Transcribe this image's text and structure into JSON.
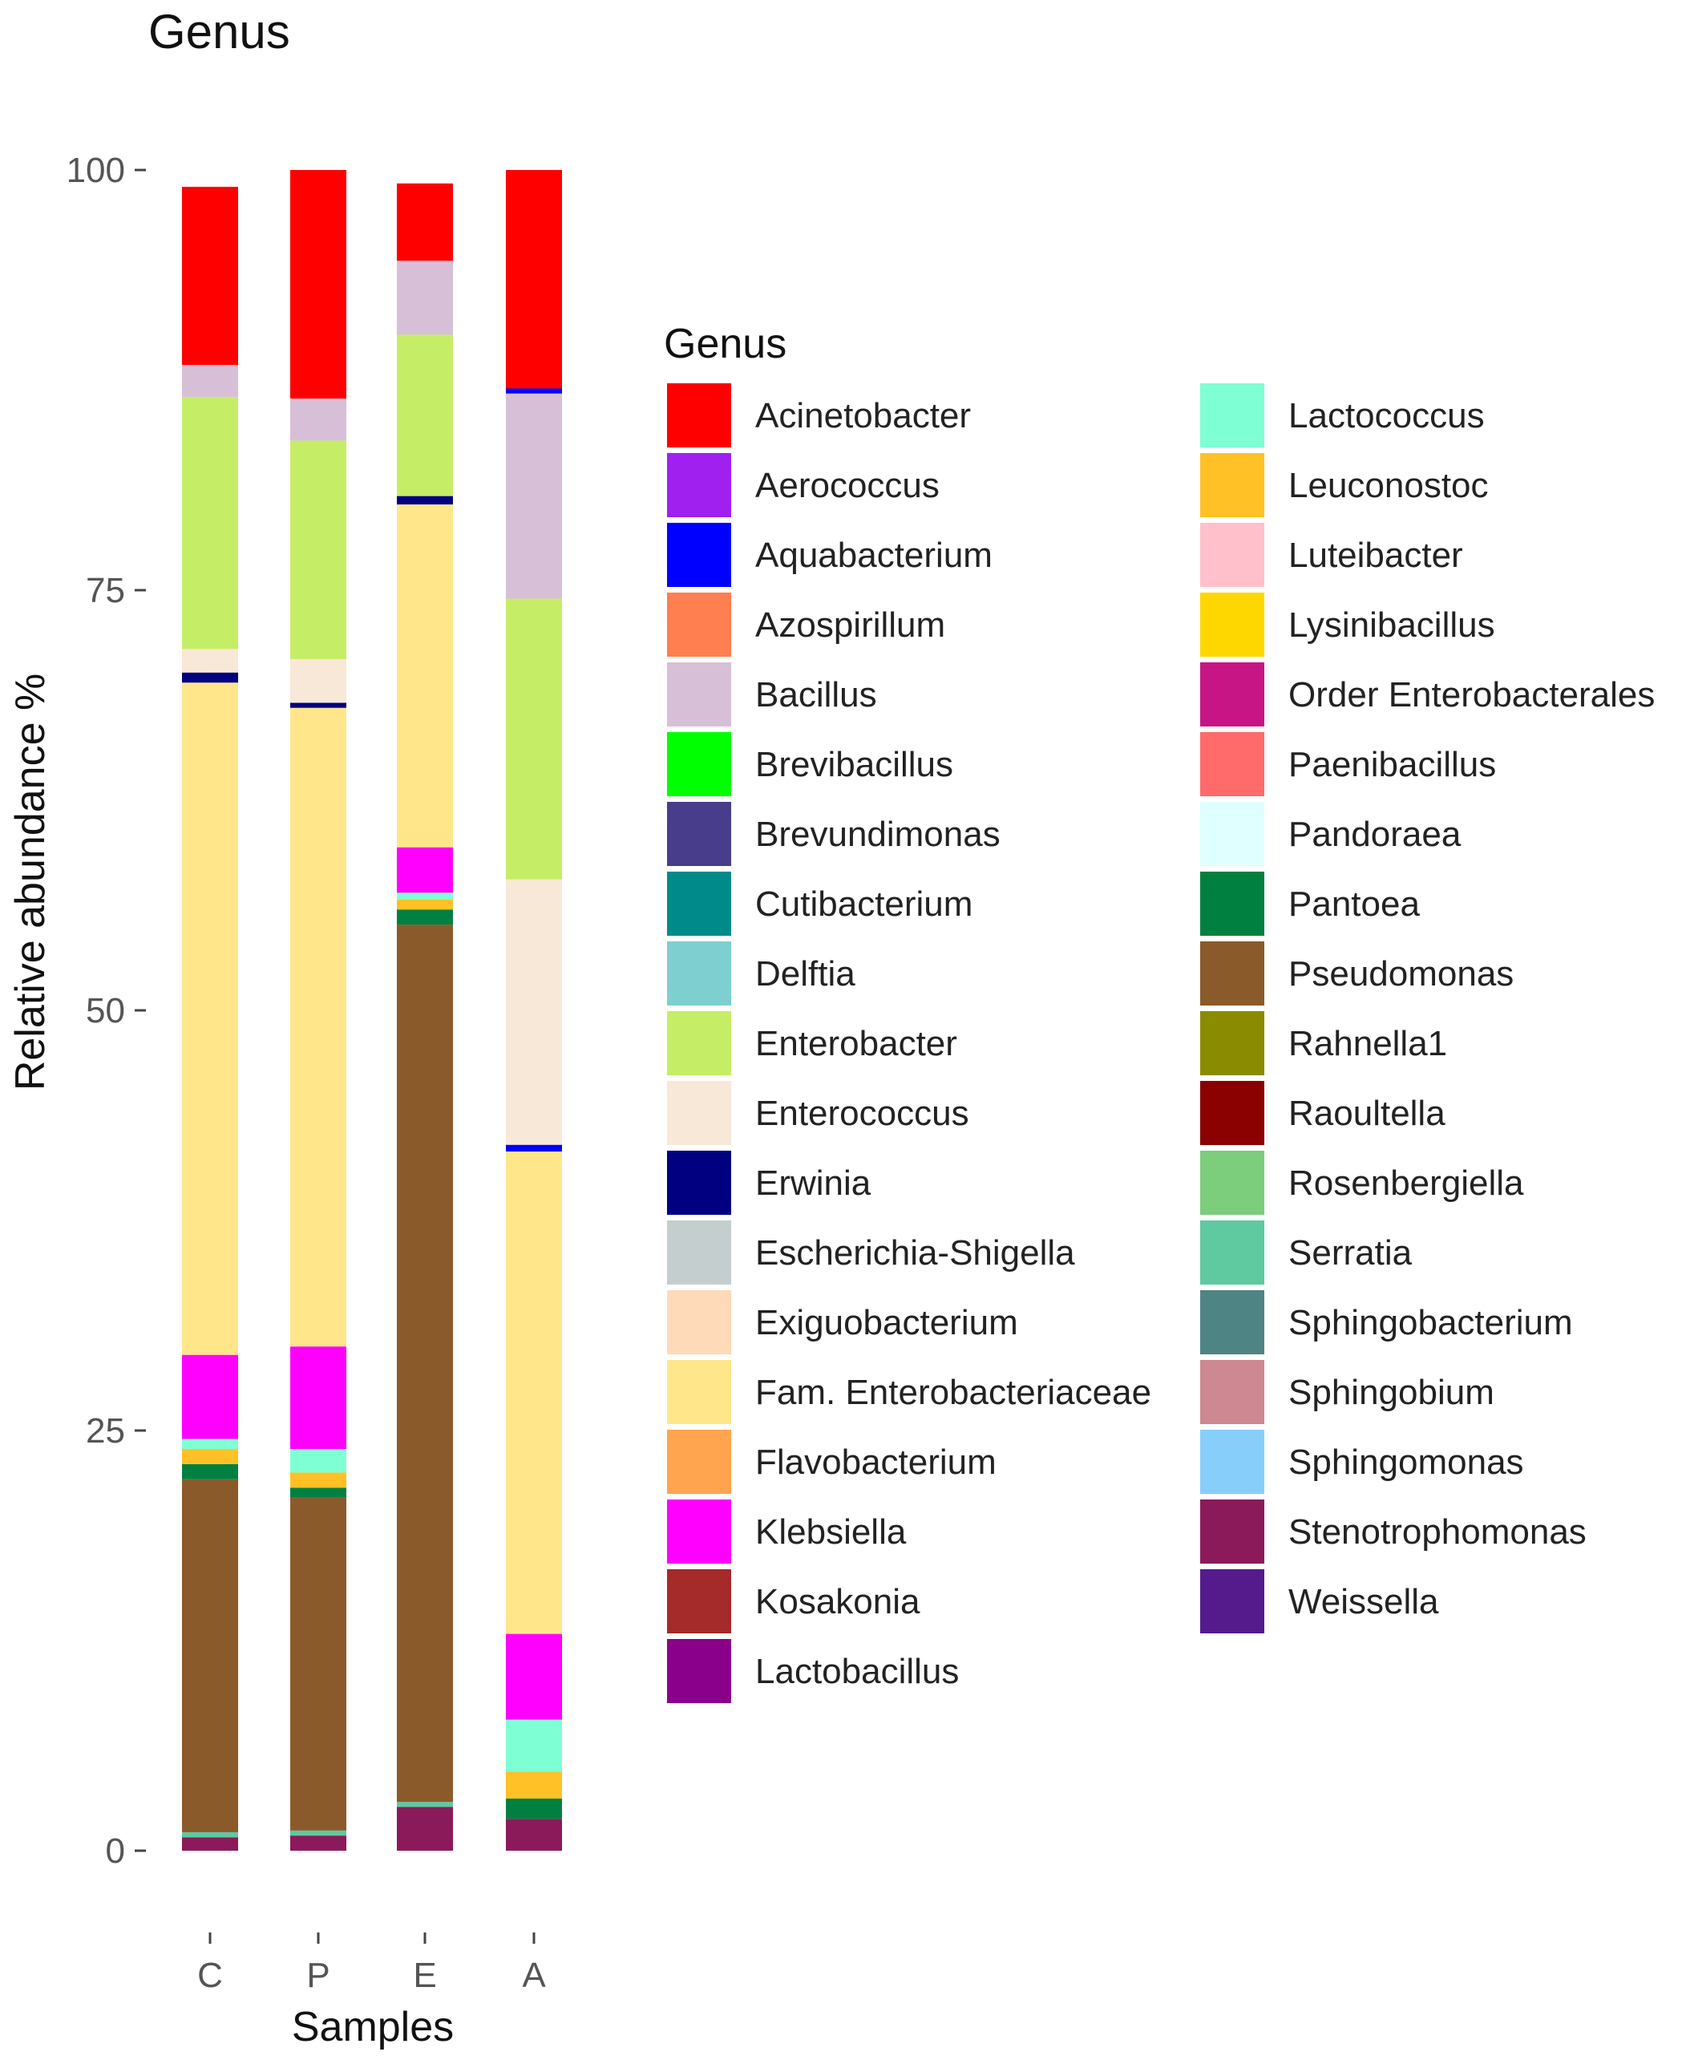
{
  "chart_data": {
    "type": "bar",
    "stacked": true,
    "title": "Genus",
    "xlabel": "Samples",
    "ylabel": "Relative abundance %",
    "ylim": [
      0,
      100
    ],
    "yticks": [
      0,
      25,
      50,
      75,
      100
    ],
    "categories": [
      "C",
      "P",
      "E",
      "A"
    ],
    "legend": {
      "title": "Genus",
      "position": "right",
      "columns": 2
    },
    "genera": [
      {
        "name": "Acinetobacter",
        "color": "#ff0000"
      },
      {
        "name": "Aerococcus",
        "color": "#a020f0"
      },
      {
        "name": "Aquabacterium",
        "color": "#0000ff"
      },
      {
        "name": "Azospirillum",
        "color": "#ff7f50"
      },
      {
        "name": "Bacillus",
        "color": "#d8bfd8"
      },
      {
        "name": "Brevibacillus",
        "color": "#00ff00"
      },
      {
        "name": "Brevundimonas",
        "color": "#483d8b"
      },
      {
        "name": "Cutibacterium",
        "color": "#008b8b"
      },
      {
        "name": "Delftia",
        "color": "#7ecfcf"
      },
      {
        "name": "Enterobacter",
        "color": "#c5ee66"
      },
      {
        "name": "Enterococcus",
        "color": "#f8e8d8"
      },
      {
        "name": "Erwinia",
        "color": "#000080"
      },
      {
        "name": "Escherichia-Shigella",
        "color": "#c5cece"
      },
      {
        "name": "Exiguobacterium",
        "color": "#ffdab9"
      },
      {
        "name": "Fam. Enterobacteriaceae",
        "color": "#ffe68a"
      },
      {
        "name": "Flavobacterium",
        "color": "#ffa54f"
      },
      {
        "name": "Klebsiella",
        "color": "#ff00ff"
      },
      {
        "name": "Kosakonia",
        "color": "#a52a2a"
      },
      {
        "name": "Lactobacillus",
        "color": "#8b008b"
      },
      {
        "name": "Lactococcus",
        "color": "#7fffd4"
      },
      {
        "name": "Leuconostoc",
        "color": "#ffc125"
      },
      {
        "name": "Luteibacter",
        "color": "#ffc0cb"
      },
      {
        "name": "Lysinibacillus",
        "color": "#ffd700"
      },
      {
        "name": "Order Enterobacterales",
        "color": "#c71585"
      },
      {
        "name": "Paenibacillus",
        "color": "#ff6a6a"
      },
      {
        "name": "Pandoraea",
        "color": "#e0ffff"
      },
      {
        "name": "Pantoea",
        "color": "#008040"
      },
      {
        "name": "Pseudomonas",
        "color": "#8b5a2b"
      },
      {
        "name": "Rahnella1",
        "color": "#8b8b00"
      },
      {
        "name": "Raoultella",
        "color": "#8b0000"
      },
      {
        "name": "Rosenbergiella",
        "color": "#7ccd7c"
      },
      {
        "name": "Serratia",
        "color": "#5fc9a0"
      },
      {
        "name": "Sphingobacterium",
        "color": "#4f8484"
      },
      {
        "name": "Sphingobium",
        "color": "#cd8891"
      },
      {
        "name": "Sphingomonas",
        "color": "#87cefa"
      },
      {
        "name": "Stenotrophomonas",
        "color": "#8b1a5a"
      },
      {
        "name": "Weissella",
        "color": "#551a8b"
      }
    ],
    "stacks": [
      {
        "sample": "C",
        "segments": [
          {
            "genus": "Stenotrophomonas",
            "value": 0.8
          },
          {
            "genus": "Serratia",
            "value": 0.3
          },
          {
            "genus": "Pseudomonas",
            "value": 21.0
          },
          {
            "genus": "Pantoea",
            "value": 0.9
          },
          {
            "genus": "Leuconostoc",
            "value": 0.9
          },
          {
            "genus": "Lactococcus",
            "value": 0.6
          },
          {
            "genus": "Klebsiella",
            "value": 5.0
          },
          {
            "genus": "Fam. Enterobacteriaceae",
            "value": 40.0
          },
          {
            "genus": "Erwinia",
            "value": 0.6
          },
          {
            "genus": "Enterococcus",
            "value": 1.4
          },
          {
            "genus": "Enterobacter",
            "value": 15.0
          },
          {
            "genus": "Bacillus",
            "value": 1.9
          },
          {
            "genus": "Acinetobacter",
            "value": 10.6
          }
        ]
      },
      {
        "sample": "P",
        "segments": [
          {
            "genus": "Stenotrophomonas",
            "value": 0.9
          },
          {
            "genus": "Serratia",
            "value": 0.3
          },
          {
            "genus": "Pseudomonas",
            "value": 19.8
          },
          {
            "genus": "Pantoea",
            "value": 0.6
          },
          {
            "genus": "Leuconostoc",
            "value": 0.9
          },
          {
            "genus": "Lactococcus",
            "value": 1.4
          },
          {
            "genus": "Klebsiella",
            "value": 6.1
          },
          {
            "genus": "Fam. Enterobacteriaceae",
            "value": 38.0
          },
          {
            "genus": "Erwinia",
            "value": 0.3
          },
          {
            "genus": "Enterococcus",
            "value": 2.6
          },
          {
            "genus": "Enterobacter",
            "value": 13.0
          },
          {
            "genus": "Bacillus",
            "value": 2.5
          },
          {
            "genus": "Acinetobacter",
            "value": 13.6
          }
        ]
      },
      {
        "sample": "E",
        "segments": [
          {
            "genus": "Stenotrophomonas",
            "value": 2.6
          },
          {
            "genus": "Serratia",
            "value": 0.3
          },
          {
            "genus": "Pseudomonas",
            "value": 52.2
          },
          {
            "genus": "Pantoea",
            "value": 0.9
          },
          {
            "genus": "Leuconostoc",
            "value": 0.6
          },
          {
            "genus": "Lactococcus",
            "value": 0.4
          },
          {
            "genus": "Klebsiella",
            "value": 2.7
          },
          {
            "genus": "Fam. Enterobacteriaceae",
            "value": 20.4
          },
          {
            "genus": "Erwinia",
            "value": 0.5
          },
          {
            "genus": "Enterobacter",
            "value": 9.6
          },
          {
            "genus": "Bacillus",
            "value": 4.4
          },
          {
            "genus": "Acinetobacter",
            "value": 4.6
          }
        ]
      },
      {
        "sample": "A",
        "segments": [
          {
            "genus": "Stenotrophomonas",
            "value": 1.9
          },
          {
            "genus": "Pantoea",
            "value": 1.2
          },
          {
            "genus": "Leuconostoc",
            "value": 1.6
          },
          {
            "genus": "Lactococcus",
            "value": 3.1
          },
          {
            "genus": "Klebsiella",
            "value": 5.1
          },
          {
            "genus": "Fam. Enterobacteriaceae",
            "value": 28.7
          },
          {
            "genus": "Aquabacterium",
            "value": 0.4
          },
          {
            "genus": "Enterococcus",
            "value": 15.8
          },
          {
            "genus": "Enterobacter",
            "value": 16.7
          },
          {
            "genus": "Bacillus",
            "value": 12.2
          },
          {
            "genus": "Aquabacterium",
            "value": 0.3
          },
          {
            "genus": "Acinetobacter",
            "value": 13.0
          }
        ]
      }
    ]
  }
}
